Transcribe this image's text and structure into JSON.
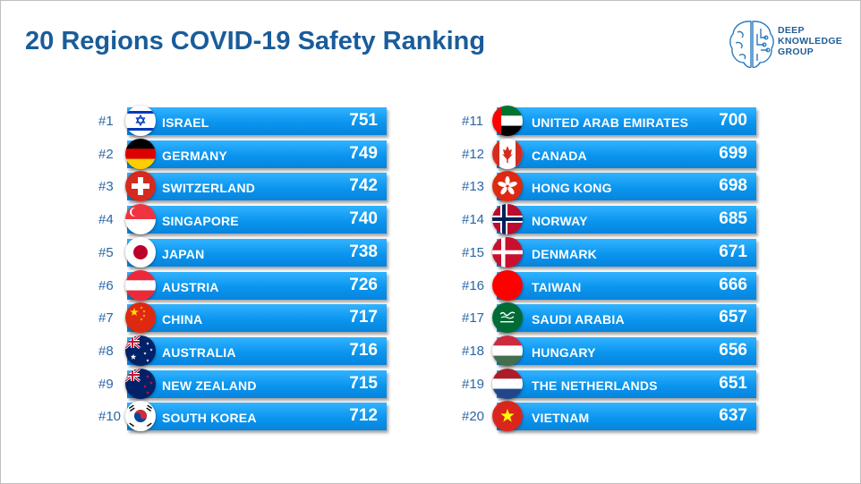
{
  "title": "20 Regions COVID-19 Safety Ranking",
  "logo": {
    "name": "brain-logo",
    "lines": [
      "DEEP",
      "KNOWLEDGE",
      "GROUP"
    ]
  },
  "colors": {
    "title": "#1a5c9a",
    "bar": "#0a95ef",
    "rank": "#2a66a6"
  },
  "chart_data": {
    "type": "bar",
    "title": "20 Regions COVID-19 Safety Ranking",
    "entries": [
      {
        "rank": "#1",
        "region": "ISRAEL",
        "score": 751,
        "flag": "israel-flag"
      },
      {
        "rank": "#2",
        "region": "GERMANY",
        "score": 749,
        "flag": "germany-flag"
      },
      {
        "rank": "#3",
        "region": "SWITZERLAND",
        "score": 742,
        "flag": "switzerland-flag"
      },
      {
        "rank": "#4",
        "region": "SINGAPORE",
        "score": 740,
        "flag": "singapore-flag"
      },
      {
        "rank": "#5",
        "region": "JAPAN",
        "score": 738,
        "flag": "japan-flag"
      },
      {
        "rank": "#6",
        "region": "AUSTRIA",
        "score": 726,
        "flag": "austria-flag"
      },
      {
        "rank": "#7",
        "region": "CHINA",
        "score": 717,
        "flag": "china-flag"
      },
      {
        "rank": "#8",
        "region": "AUSTRALIA",
        "score": 716,
        "flag": "australia-flag"
      },
      {
        "rank": "#9",
        "region": "NEW ZEALAND",
        "score": 715,
        "flag": "new-zealand-flag"
      },
      {
        "rank": "#10",
        "region": "SOUTH KOREA",
        "score": 712,
        "flag": "south-korea-flag"
      },
      {
        "rank": "#11",
        "region": "UNITED ARAB EMIRATES",
        "score": 700,
        "flag": "uae-flag"
      },
      {
        "rank": "#12",
        "region": "CANADA",
        "score": 699,
        "flag": "canada-flag"
      },
      {
        "rank": "#13",
        "region": "HONG KONG",
        "score": 698,
        "flag": "hong-kong-flag"
      },
      {
        "rank": "#14",
        "region": "NORWAY",
        "score": 685,
        "flag": "norway-flag"
      },
      {
        "rank": "#15",
        "region": "DENMARK",
        "score": 671,
        "flag": "denmark-flag"
      },
      {
        "rank": "#16",
        "region": "TAIWAN",
        "score": 666,
        "flag": "taiwan-flag"
      },
      {
        "rank": "#17",
        "region": "SAUDI ARABIA",
        "score": 657,
        "flag": "saudi-arabia-flag"
      },
      {
        "rank": "#18",
        "region": "HUNGARY",
        "score": 656,
        "flag": "hungary-flag"
      },
      {
        "rank": "#19",
        "region": "THE NETHERLANDS",
        "score": 651,
        "flag": "netherlands-flag"
      },
      {
        "rank": "#20",
        "region": "VIETNAM",
        "score": 637,
        "flag": "vietnam-flag"
      }
    ]
  }
}
